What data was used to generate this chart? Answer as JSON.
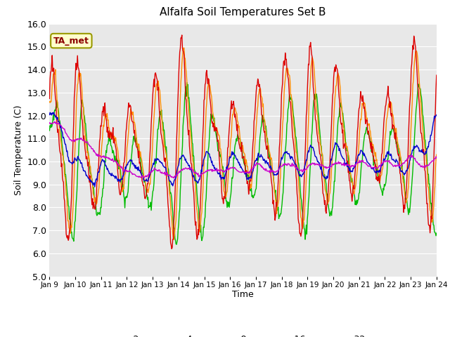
{
  "title": "Alfalfa Soil Temperatures Set B",
  "ylabel": "Soil Temperature (C)",
  "xlabel": "Time",
  "annotation": "TA_met",
  "ylim": [
    5.0,
    16.0
  ],
  "yticks": [
    5.0,
    6.0,
    7.0,
    8.0,
    9.0,
    10.0,
    11.0,
    12.0,
    13.0,
    14.0,
    15.0,
    16.0
  ],
  "colors": {
    "-2cm": "#dd0000",
    "-4cm": "#ff8c00",
    "-8cm": "#00bb00",
    "-16cm": "#0000cc",
    "-32cm": "#cc00cc"
  },
  "bg_color": "#e8e8e8",
  "n_points": 720,
  "start_day": 9,
  "end_day": 24
}
